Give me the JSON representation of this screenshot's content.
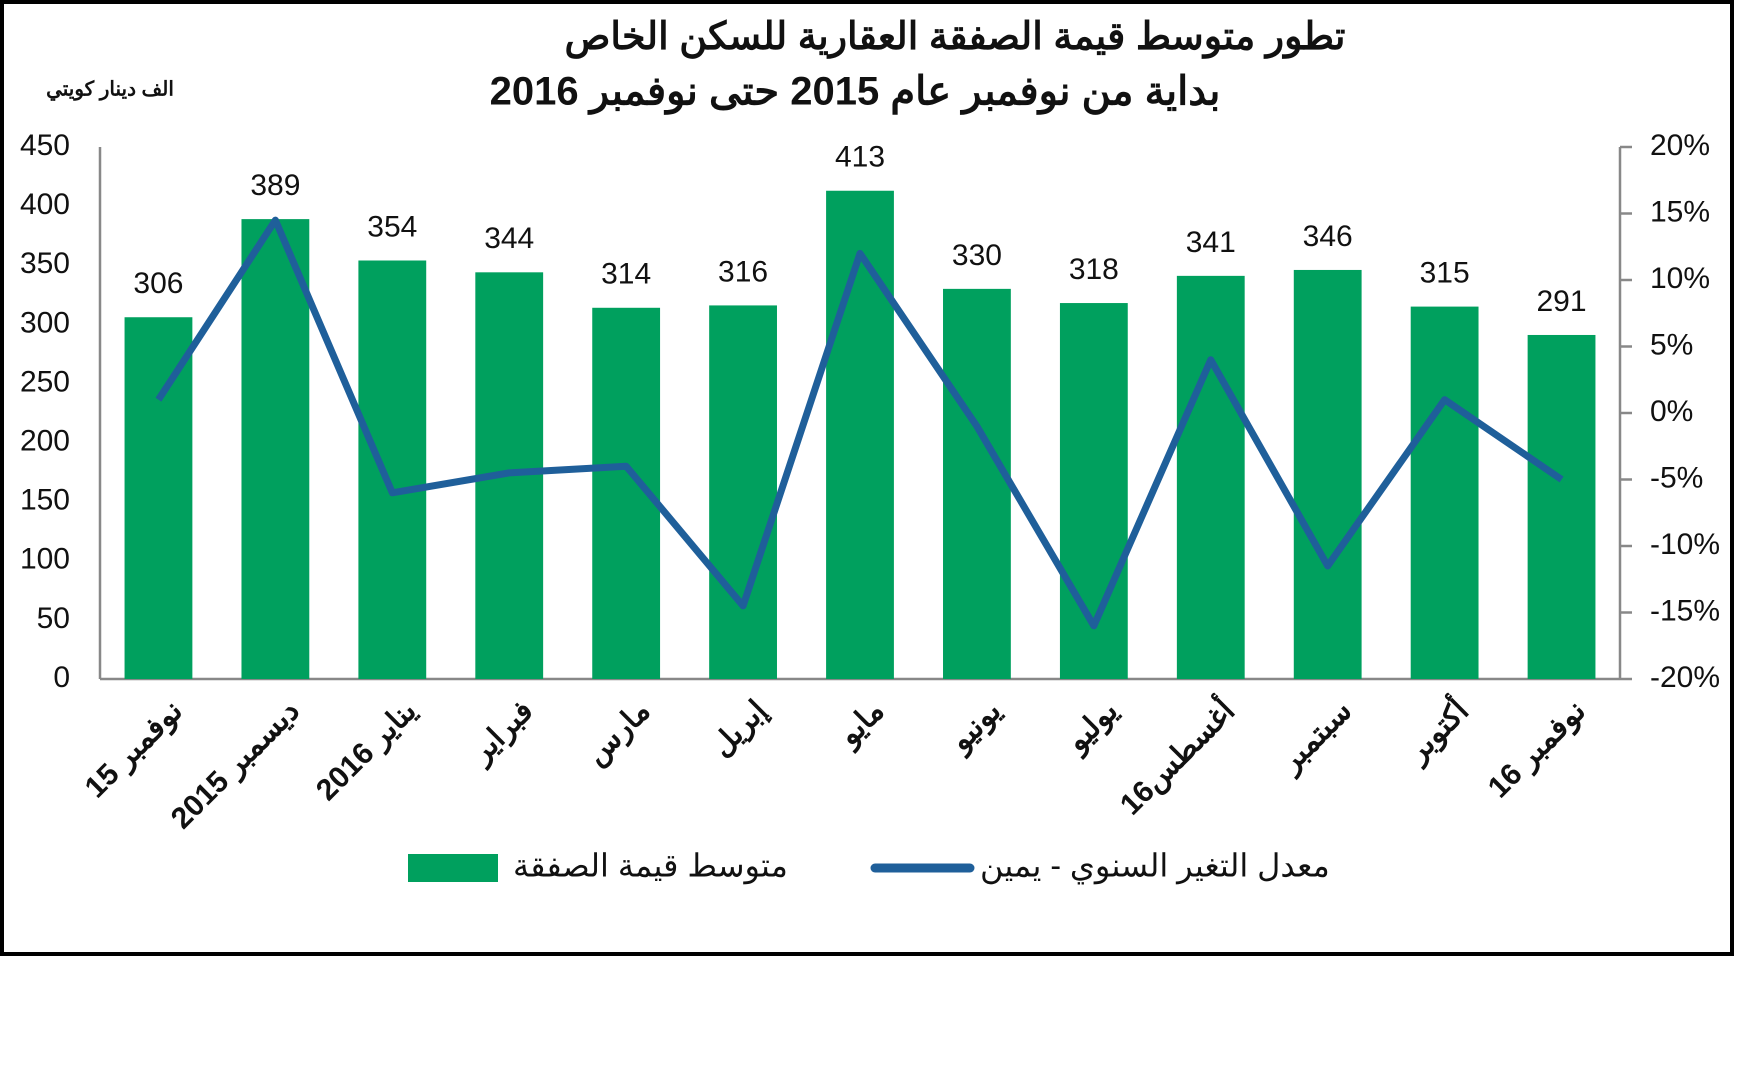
{
  "chart_data": {
    "type": "bar",
    "title": "تطور متوسط قيمة الصفقة العقارية للسكن الخاص",
    "subtitle": "بداية من نوفمبر عام 2015 حتى نوفمبر 2016",
    "y_label": "الف دينار كويتي",
    "categories": [
      "نوفمبر 15",
      "ديسمبر 2015",
      "يناير 2016",
      "فبراير",
      "مارس",
      "إبريل",
      "مايو",
      "يونيو",
      "يوليو",
      "أغسطس16",
      "سبتمبر",
      "أكتوبر",
      "نوفمبر 16"
    ],
    "series": [
      {
        "name": "متوسط قيمة الصفقة",
        "type": "bar",
        "color": "#00a05e",
        "values": [
          306,
          389,
          354,
          344,
          314,
          316,
          413,
          330,
          318,
          341,
          346,
          315,
          291
        ]
      },
      {
        "name": "معدل التغير السنوي - يمين",
        "type": "line",
        "axis": "y2",
        "color": "#1f5f9a",
        "values": [
          1,
          14.5,
          -6,
          -4.5,
          -4,
          -14.5,
          12,
          -1,
          -16,
          4,
          -11.5,
          1,
          -5
        ]
      }
    ],
    "ylim": [
      0,
      450
    ],
    "yticks": [
      0,
      50,
      100,
      150,
      200,
      250,
      300,
      350,
      400,
      450
    ],
    "y2lim": [
      -20,
      20
    ],
    "y2ticks": [
      {
        "value": -20,
        "label": "-20%"
      },
      {
        "value": -15,
        "label": "-15%"
      },
      {
        "value": -10,
        "label": "-10%"
      },
      {
        "value": -5,
        "label": "-5%"
      },
      {
        "value": 0,
        "label": "0%"
      },
      {
        "value": 5,
        "label": "5%"
      },
      {
        "value": 10,
        "label": "10%"
      },
      {
        "value": 15,
        "label": "15%"
      },
      {
        "value": 20,
        "label": "20%"
      }
    ],
    "grid": false,
    "legend": "bottom",
    "title_color": "#1aa55a"
  }
}
